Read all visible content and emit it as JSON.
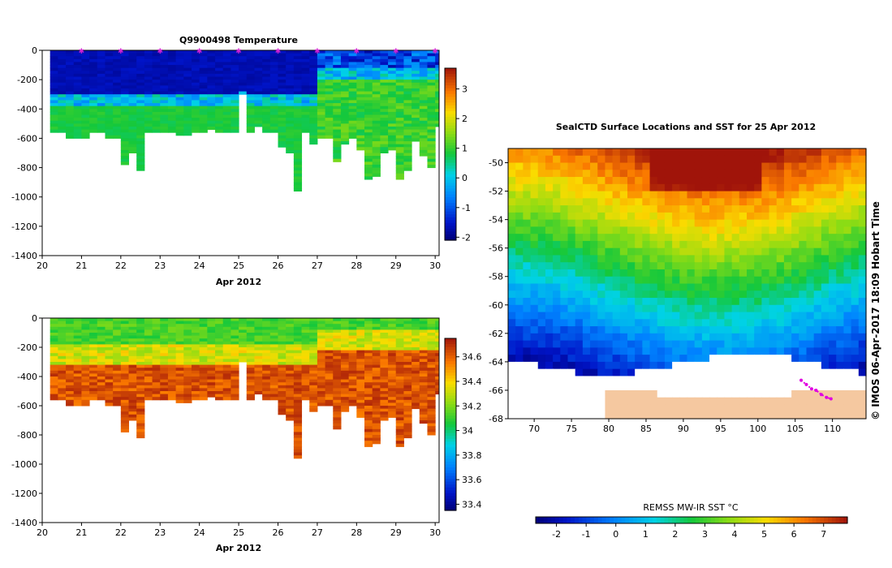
{
  "chart_data": [
    {
      "type": "heatmap",
      "name": "temperature-section",
      "title": "Q9900498  Temperature",
      "xlabel": "Apr 2012",
      "ylabel": "",
      "x_ticks": [
        "20",
        "21",
        "22",
        "23",
        "24",
        "25",
        "26",
        "27",
        "28",
        "29",
        "30"
      ],
      "xlim": [
        20,
        30.1
      ],
      "y_ticks": [
        "0",
        "-200",
        "-400",
        "-600",
        "-800",
        "-1000",
        "-1200",
        "-1400"
      ],
      "ylim": [
        -1400,
        0
      ],
      "colorbar_ticks": [
        "3",
        "2",
        "1",
        "0",
        "-1",
        "-2"
      ],
      "colorbar_range": [
        -2.1,
        3.7
      ],
      "profile_markers_day": [
        21,
        22,
        23,
        24,
        25,
        26,
        27,
        28,
        29,
        30
      ],
      "profile_days": [
        20.2,
        20.4,
        20.6,
        20.8,
        21.0,
        21.2,
        21.4,
        21.6,
        21.8,
        22.0,
        22.2,
        22.4,
        22.6,
        22.8,
        23.0,
        23.2,
        23.4,
        23.6,
        23.8,
        24.0,
        24.2,
        24.4,
        24.6,
        24.8,
        25.0,
        25.2,
        25.4,
        25.6,
        25.8,
        26.0,
        26.2,
        26.4,
        26.6,
        26.8,
        27.0,
        27.2,
        27.4,
        27.6,
        27.8,
        28.0,
        28.2,
        28.4,
        28.6,
        28.8,
        29.0,
        29.2,
        29.4,
        29.6,
        29.8,
        30.0
      ],
      "profile_max_depth_m": [
        -560,
        -560,
        -600,
        -600,
        -600,
        -560,
        -560,
        -600,
        -600,
        -780,
        -700,
        -820,
        -560,
        -560,
        -560,
        -560,
        -580,
        -580,
        -560,
        -560,
        -540,
        -560,
        -560,
        -560,
        -300,
        -560,
        -520,
        -560,
        -560,
        -660,
        -700,
        -960,
        -560,
        -640,
        -600,
        -600,
        -760,
        -640,
        -600,
        -680,
        -880,
        -860,
        -700,
        -680,
        -880,
        -820,
        -620,
        -720,
        -800,
        -520
      ]
    },
    {
      "type": "heatmap",
      "name": "salinity-section",
      "title": "",
      "xlabel": "Apr 2012",
      "x_ticks": [
        "20",
        "21",
        "22",
        "23",
        "24",
        "25",
        "26",
        "27",
        "28",
        "29",
        "30"
      ],
      "xlim": [
        20,
        30.1
      ],
      "y_ticks": [
        "0",
        "-200",
        "-400",
        "-600",
        "-800",
        "-1000",
        "-1200",
        "-1400"
      ],
      "ylim": [
        -1400,
        0
      ],
      "colorbar_ticks": [
        "34.6",
        "34.4",
        "34.2",
        "34",
        "33.8",
        "33.6",
        "33.4"
      ],
      "colorbar_range": [
        33.35,
        34.75
      ]
    },
    {
      "type": "heatmap",
      "name": "sst-map",
      "title": "SealCTD Surface Locations and SST for 25 Apr 2012",
      "x_ticks": [
        "70",
        "75",
        "80",
        "85",
        "90",
        "95",
        "100",
        "105",
        "110"
      ],
      "xlim": [
        66.5,
        114.5
      ],
      "y_ticks": [
        "-50",
        "-52",
        "-54",
        "-56",
        "-58",
        "-60",
        "-62",
        "-64",
        "-66",
        "-68"
      ],
      "ylim": [
        -68,
        -49
      ],
      "colorbar_label": "REMSS MW-IR SST °C",
      "colorbar_ticks": [
        "-2",
        "-1",
        "0",
        "1",
        "2",
        "3",
        "4",
        "5",
        "6",
        "7"
      ],
      "colorbar_range": [
        -2.7,
        7.8
      ],
      "side_note": "© IMOS 06-Apr-2017 18:09 Hobart Time",
      "seal_track": [
        [
          105.8,
          -65.3
        ],
        [
          106.5,
          -65.6
        ],
        [
          107.2,
          -65.9
        ],
        [
          107.8,
          -66.0
        ],
        [
          108.5,
          -66.3
        ],
        [
          109.2,
          -66.5
        ],
        [
          109.8,
          -66.6
        ]
      ]
    }
  ]
}
